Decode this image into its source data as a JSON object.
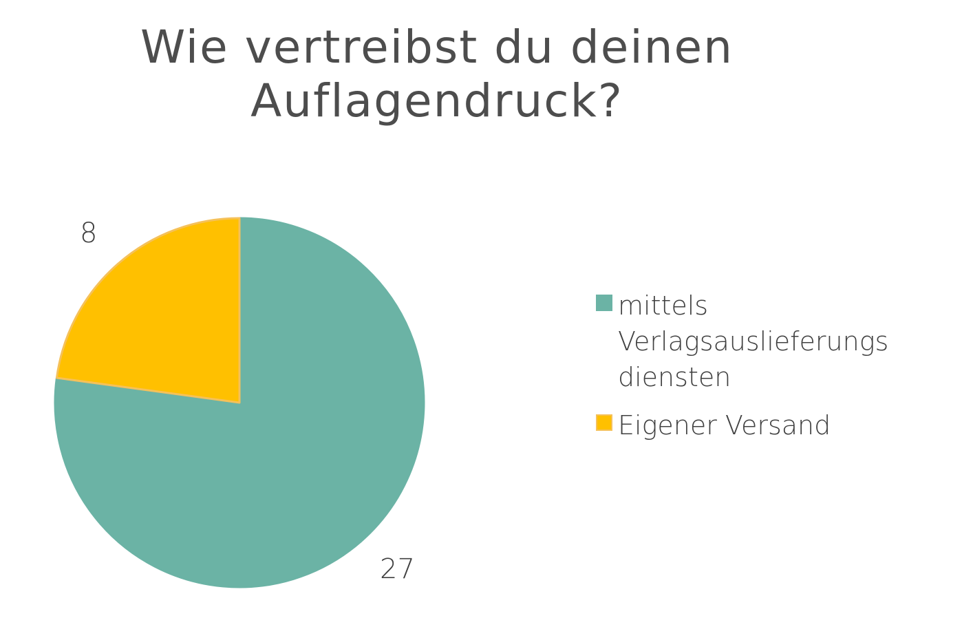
{
  "chart_data": {
    "type": "pie",
    "title": "Wie vertreibst du deinen Auflagendruck?",
    "title_lines": [
      "Wie vertreibst du deinen",
      "Auflagendruck?"
    ],
    "categories": [
      "mittels Verlagsauslieferungsdiensten",
      "Eigener Versand"
    ],
    "values": [
      27,
      8
    ],
    "data_labels": [
      "27",
      "8"
    ],
    "legend_lines": [
      [
        "mittels",
        "Verlagsauslieferungs",
        "diensten"
      ],
      [
        "Eigener Versand"
      ]
    ],
    "colors": [
      "#6bb3a5",
      "#ffc000"
    ],
    "slice_outline_colors": [
      "#6bb3a5",
      "#f5c15a"
    ],
    "legend_position": "right",
    "start_angle": "12 o'clock, clockwise"
  }
}
